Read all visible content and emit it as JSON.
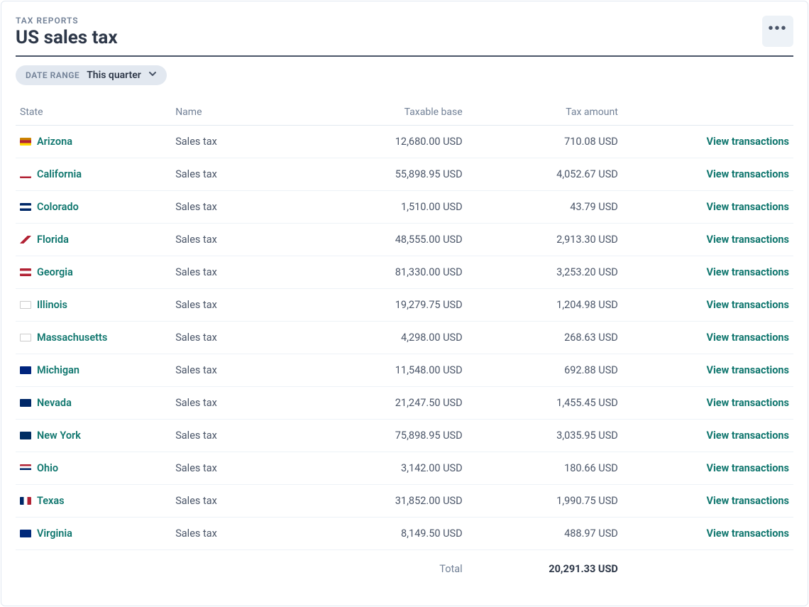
{
  "header": {
    "breadcrumb": "TAX REPORTS",
    "title": "US sales tax"
  },
  "filters": {
    "date_range_label": "DATE RANGE",
    "date_range_value": "This quarter"
  },
  "table": {
    "columns": {
      "state": "State",
      "name": "Name",
      "taxable_base": "Taxable base",
      "tax_amount": "Tax amount"
    },
    "action_label": "View transactions",
    "rows": [
      {
        "state": "Arizona",
        "name": "Sales tax",
        "taxable_base": "12,680.00 USD",
        "tax_amount": "710.08 USD",
        "flag": "linear-gradient(#cc8400 33%, #b22234 33% 66%, #ffd700 66%)"
      },
      {
        "state": "California",
        "name": "Sales tax",
        "taxable_base": "55,898.95 USD",
        "tax_amount": "4,052.67 USD",
        "flag": "linear-gradient(#fff 75%, #b22234 75%)"
      },
      {
        "state": "Colorado",
        "name": "Sales tax",
        "taxable_base": "1,510.00 USD",
        "tax_amount": "43.79 USD",
        "flag": "linear-gradient(#002868 33%, #fff 33% 66%, #002868 66%)"
      },
      {
        "state": "Florida",
        "name": "Sales tax",
        "taxable_base": "48,555.00 USD",
        "tax_amount": "2,913.30 USD",
        "flag": "linear-gradient(135deg,#fff 40%,#b22234 40% 60%,#fff 60%)"
      },
      {
        "state": "Georgia",
        "name": "Sales tax",
        "taxable_base": "81,330.00 USD",
        "tax_amount": "3,253.20 USD",
        "flag": "linear-gradient(#b22234 33%,#fff 33% 66%,#b22234 66%)"
      },
      {
        "state": "Illinois",
        "name": "Sales tax",
        "taxable_base": "19,279.75 USD",
        "tax_amount": "1,204.98 USD",
        "flag": "#ffffff; border:1px solid #ccc"
      },
      {
        "state": "Massachusetts",
        "name": "Sales tax",
        "taxable_base": "4,298.00 USD",
        "tax_amount": "268.63 USD",
        "flag": "#ffffff; border:1px solid #ccc"
      },
      {
        "state": "Michigan",
        "name": "Sales tax",
        "taxable_base": "11,548.00 USD",
        "tax_amount": "692.88 USD",
        "flag": "#00247d"
      },
      {
        "state": "Nevada",
        "name": "Sales tax",
        "taxable_base": "21,247.50 USD",
        "tax_amount": "1,455.45 USD",
        "flag": "#002868"
      },
      {
        "state": "New York",
        "name": "Sales tax",
        "taxable_base": "75,898.95 USD",
        "tax_amount": "3,035.95 USD",
        "flag": "#002d62"
      },
      {
        "state": "Ohio",
        "name": "Sales tax",
        "taxable_base": "3,142.00 USD",
        "tax_amount": "180.66 USD",
        "flag": "linear-gradient(#b22234 25%,#fff 25% 50%,#002868 50% 75%,#fff 75%)"
      },
      {
        "state": "Texas",
        "name": "Sales tax",
        "taxable_base": "31,852.00 USD",
        "tax_amount": "1,990.75 USD",
        "flag": "linear-gradient(90deg,#002868 33%,#fff 33% 66%,#b22234 66%)"
      },
      {
        "state": "Virginia",
        "name": "Sales tax",
        "taxable_base": "8,149.50 USD",
        "tax_amount": "488.97 USD",
        "flag": "#00297b"
      }
    ],
    "total_label": "Total",
    "total_value": "20,291.33 USD"
  },
  "colors": {
    "accent": "#0f766e",
    "text": "#2d3748",
    "muted": "#718096",
    "border": "#e2e8f0",
    "header_rule": "#4a5568"
  }
}
